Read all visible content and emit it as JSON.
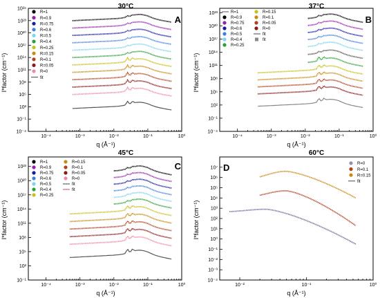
{
  "chart_data": [
    {
      "type": "scatter",
      "title": "30°C",
      "panel": "A",
      "xlabel": "q (Å⁻¹)",
      "ylabel": "I*factor (cm⁻¹)",
      "xscale": "log",
      "yscale": "log",
      "xlim": [
        3e-05,
        1
      ],
      "ylim": [
        0.0001,
        1e+26
      ],
      "x_tick_labels": [
        "10⁻⁴",
        "10⁻³",
        "10⁻²",
        "10⁻¹",
        "10⁰"
      ],
      "y_tick_labels": [
        "10⁻⁴",
        "10⁻¹",
        "10²",
        "10⁵",
        "10⁸",
        "10¹¹",
        "10¹⁴",
        "10¹⁷",
        "10²⁰",
        "10²³",
        "10²⁶"
      ],
      "legend_position": "top-left",
      "legend_columns": 1,
      "legend": [
        {
          "label": "R=1",
          "color": "#000000",
          "kind": "marker"
        },
        {
          "label": "R=0.9",
          "color": "#9b1fae",
          "kind": "marker"
        },
        {
          "label": "R=0.75",
          "color": "#1a1aa8",
          "kind": "marker"
        },
        {
          "label": "R=0.6",
          "color": "#3d7fe0",
          "kind": "marker"
        },
        {
          "label": "R=0.5",
          "color": "#7ed3f0",
          "kind": "marker"
        },
        {
          "label": "R=0.4",
          "color": "#2aa136",
          "kind": "marker"
        },
        {
          "label": "R=0.25",
          "color": "#c7c01c",
          "kind": "marker"
        },
        {
          "label": "R=0.15",
          "color": "#c98a14",
          "kind": "marker"
        },
        {
          "label": "R=0.1",
          "color": "#b3411e",
          "kind": "marker"
        },
        {
          "label": "R=0.05",
          "color": "#8c1a1a",
          "kind": "marker"
        },
        {
          "label": "R=0",
          "color": "#f08aa8",
          "kind": "marker"
        },
        {
          "label": "fit",
          "color": "#444444",
          "kind": "line"
        }
      ],
      "series": [
        {
          "name": "R=1",
          "color": "#000000",
          "qmin": 0.0006,
          "qmax": 0.5,
          "level": 23.6
        },
        {
          "name": "R=0.9",
          "color": "#9b1fae",
          "qmin": 0.0006,
          "qmax": 0.5,
          "level": 21.8
        },
        {
          "name": "R=0.75",
          "color": "#1a1aa8",
          "qmin": 0.0006,
          "qmax": 0.5,
          "level": 20.0
        },
        {
          "name": "R=0.6",
          "color": "#3d7fe0",
          "qmin": 0.0006,
          "qmax": 0.5,
          "level": 18.2
        },
        {
          "name": "R=0.5",
          "color": "#7ed3f0",
          "qmin": 0.0006,
          "qmax": 0.5,
          "level": 16.4
        },
        {
          "name": "R=0.4",
          "color": "#2aa136",
          "qmin": 0.0006,
          "qmax": 0.5,
          "level": 14.6
        },
        {
          "name": "R=0.25",
          "color": "#c7c01c",
          "qmin": 0.0006,
          "qmax": 0.5,
          "level": 12.8
        },
        {
          "name": "R=0.15",
          "color": "#c98a14",
          "qmin": 0.0006,
          "qmax": 0.5,
          "level": 11.0
        },
        {
          "name": "R=0.1",
          "color": "#b3411e",
          "qmin": 0.0006,
          "qmax": 0.5,
          "level": 9.2
        },
        {
          "name": "R=0.05",
          "color": "#8c1a1a",
          "qmin": 0.0006,
          "qmax": 0.5,
          "level": 7.4
        },
        {
          "name": "R=0",
          "color": "#f08aa8",
          "qmin": 0.0006,
          "qmax": 0.5,
          "level": 5.6
        },
        {
          "name": "fit",
          "color": "#555555",
          "qmin": 0.0006,
          "qmax": 0.5,
          "level": 2.2
        }
      ]
    },
    {
      "type": "scatter",
      "title": "37°C",
      "panel": "B",
      "xlabel": "q (Å⁻¹)",
      "ylabel": "I*factor (cm⁻¹)",
      "xscale": "log",
      "yscale": "log",
      "xlim": [
        3e-05,
        1
      ],
      "ylim": [
        0.0001,
        1e+24
      ],
      "x_tick_labels": [
        "10⁻⁴",
        "10⁻³",
        "10⁻²",
        "10⁻¹",
        "10⁰"
      ],
      "y_tick_labels": [
        "10⁻⁴",
        "10⁻¹",
        "10²",
        "10⁵",
        "10⁸",
        "10¹¹",
        "10¹⁴",
        "10¹⁷",
        "10²⁰",
        "10²³"
      ],
      "legend_position": "top-left",
      "legend_columns": 2,
      "legend": [
        {
          "label": "R=1",
          "color": "#555555",
          "kind": "line"
        },
        {
          "label": "R=0.9",
          "color": "#000000",
          "kind": "marker"
        },
        {
          "label": "R=0.75",
          "color": "#9b1fae",
          "kind": "marker"
        },
        {
          "label": "R=0.6",
          "color": "#1a1aa8",
          "kind": "marker"
        },
        {
          "label": "R=0.5",
          "color": "#3d7fe0",
          "kind": "marker"
        },
        {
          "label": "R=0.4",
          "color": "#7ed3f0",
          "kind": "marker"
        },
        {
          "label": "R=0.25",
          "color": "#2aa136",
          "kind": "marker"
        },
        {
          "label": "R=0.15",
          "color": "#c7c01c",
          "kind": "marker"
        },
        {
          "label": "R=0.1",
          "color": "#c98a14",
          "kind": "marker"
        },
        {
          "label": "R=0.05",
          "color": "#b3411e",
          "kind": "marker"
        },
        {
          "label": "R=0",
          "color": "#8c1a1a",
          "kind": "marker"
        },
        {
          "label": "fit",
          "color": "#444444",
          "kind": "line"
        },
        {
          "label": "fit",
          "color": "#888888",
          "kind": "square"
        }
      ],
      "series": [
        {
          "name": "R=0.9",
          "color": "#000000",
          "qmin": 0.012,
          "qmax": 0.5,
          "level": 21.8
        },
        {
          "name": "R=0.75",
          "color": "#9b1fae",
          "qmin": 0.012,
          "qmax": 0.5,
          "level": 20.2
        },
        {
          "name": "R=0.6",
          "color": "#1a1aa8",
          "qmin": 0.012,
          "qmax": 0.5,
          "level": 18.6
        },
        {
          "name": "R=0.5",
          "color": "#3d7fe0",
          "qmin": 0.012,
          "qmax": 0.5,
          "level": 17.0
        },
        {
          "name": "R=0.4",
          "color": "#7ed3f0",
          "qmin": 0.012,
          "qmax": 0.5,
          "level": 15.4
        },
        {
          "name": "R=1",
          "color": "#555555",
          "qmin": 0.012,
          "qmax": 0.5,
          "level": 13.6
        },
        {
          "name": "R=0.25",
          "color": "#2aa136",
          "qmin": 0.012,
          "qmax": 0.5,
          "level": 11.8
        },
        {
          "name": "R=0.15",
          "color": "#c7c01c",
          "qmin": 0.0004,
          "qmax": 0.5,
          "level": 10.0
        },
        {
          "name": "R=0.1",
          "color": "#c98a14",
          "qmin": 0.0004,
          "qmax": 0.5,
          "level": 8.4
        },
        {
          "name": "R=0.05",
          "color": "#b3411e",
          "qmin": 0.0004,
          "qmax": 0.5,
          "level": 6.8
        },
        {
          "name": "R=0",
          "color": "#8c1a1a",
          "qmin": 0.0004,
          "qmax": 0.5,
          "level": 5.2
        },
        {
          "name": "fit",
          "color": "#888888",
          "qmin": 0.0004,
          "qmax": 0.5,
          "level": 2.4
        }
      ]
    },
    {
      "type": "scatter",
      "title": "45°C",
      "panel": "C",
      "xlabel": "q (Å⁻¹)",
      "ylabel": "I*factor (cm⁻¹)",
      "xscale": "log",
      "yscale": "log",
      "xlim": [
        3e-05,
        1
      ],
      "ylim": [
        0.001,
        1e+23
      ],
      "x_tick_labels": [
        "10⁻⁴",
        "10⁻³",
        "10⁻²",
        "10⁻¹",
        "10⁰"
      ],
      "y_tick_labels": [
        "10⁻¹",
        "10²",
        "10⁵",
        "10⁸",
        "10¹¹",
        "10¹⁴",
        "10¹⁷",
        "10²⁰",
        "10²³"
      ],
      "legend_position": "top-left",
      "legend_columns": 2,
      "legend": [
        {
          "label": "R=1",
          "color": "#000000",
          "kind": "marker"
        },
        {
          "label": "R=0.9",
          "color": "#9b1fae",
          "kind": "marker"
        },
        {
          "label": "R=0.75",
          "color": "#1a1aa8",
          "kind": "marker"
        },
        {
          "label": "R=0.6",
          "color": "#3d7fe0",
          "kind": "marker"
        },
        {
          "label": "R=0.5",
          "color": "#7ed3f0",
          "kind": "marker"
        },
        {
          "label": "R=0.4",
          "color": "#2aa136",
          "kind": "marker"
        },
        {
          "label": "R=0.25",
          "color": "#c7c01c",
          "kind": "marker"
        },
        {
          "label": "R=0.15",
          "color": "#c98a14",
          "kind": "marker"
        },
        {
          "label": "R=0.1",
          "color": "#b3411e",
          "kind": "marker"
        },
        {
          "label": "R=0.05",
          "color": "#8c1a1a",
          "kind": "marker"
        },
        {
          "label": "R=0",
          "color": "#f08aa8",
          "kind": "marker"
        },
        {
          "label": "fit",
          "color": "#444444",
          "kind": "line"
        },
        {
          "label": "fit",
          "color": "#c0504d",
          "kind": "line"
        }
      ],
      "series": [
        {
          "name": "R=1",
          "color": "#000000",
          "qmin": 0.01,
          "qmax": 0.5,
          "level": 20.2
        },
        {
          "name": "R=0.9",
          "color": "#9b1fae",
          "qmin": 0.01,
          "qmax": 0.5,
          "level": 18.8
        },
        {
          "name": "R=0.75",
          "color": "#1a1aa8",
          "qmin": 0.01,
          "qmax": 0.5,
          "level": 17.4
        },
        {
          "name": "R=0.6",
          "color": "#3d7fe0",
          "qmin": 0.01,
          "qmax": 0.5,
          "level": 16.0
        },
        {
          "name": "R=0.5",
          "color": "#7ed3f0",
          "qmin": 0.01,
          "qmax": 0.5,
          "level": 14.6
        },
        {
          "name": "R=0.4",
          "color": "#2aa136",
          "qmin": 0.01,
          "qmax": 0.5,
          "level": 13.2
        },
        {
          "name": "R=0.25",
          "color": "#c7c01c",
          "qmin": 0.0005,
          "qmax": 0.5,
          "level": 11.6
        },
        {
          "name": "R=0.15",
          "color": "#c98a14",
          "qmin": 0.0005,
          "qmax": 0.5,
          "level": 10.0
        },
        {
          "name": "R=0.1",
          "color": "#b3411e",
          "qmin": 0.0005,
          "qmax": 0.5,
          "level": 8.4
        },
        {
          "name": "R=0.05",
          "color": "#8c1a1a",
          "qmin": 0.0005,
          "qmax": 0.5,
          "level": 6.8
        },
        {
          "name": "R=0",
          "color": "#f08aa8",
          "qmin": 0.0005,
          "qmax": 0.5,
          "level": 5.2
        },
        {
          "name": "fit",
          "color": "#555555",
          "qmin": 0.0005,
          "qmax": 0.5,
          "level": 2.4
        }
      ]
    },
    {
      "type": "scatter",
      "title": "60°C",
      "panel": "D",
      "xlabel": "q (Å⁻¹)",
      "ylabel": "I*factor (cm⁻¹)",
      "xscale": "log",
      "yscale": "log",
      "xlim": [
        0.005,
        1
      ],
      "ylim": [
        0.0001,
        100000000.0
      ],
      "x_tick_labels": [
        "10⁻²",
        "10⁻¹",
        "10⁰"
      ],
      "y_tick_labels": [
        "10⁻⁴",
        "10⁻³",
        "10⁻²",
        "10⁻¹",
        "10⁰",
        "10¹",
        "10²",
        "10³",
        "10⁴",
        "10⁵",
        "10⁶",
        "10⁷"
      ],
      "legend_position": "top-right",
      "legend_columns": 1,
      "legend": [
        {
          "label": "R=0",
          "color": "#9b8ab8",
          "kind": "marker"
        },
        {
          "label": "R=0.1",
          "color": "#b3411e",
          "kind": "marker"
        },
        {
          "label": "R=0.15",
          "color": "#c98a14",
          "kind": "marker"
        },
        {
          "label": "fit",
          "color": "#444444",
          "kind": "line"
        }
      ],
      "series": [
        {
          "name": "R=0.15",
          "color": "#c98a14",
          "qmin": 0.02,
          "qmax": 0.55,
          "peak_q": 0.05,
          "peak_level": 6.6,
          "start_level": 5.6,
          "end_level": 4.0
        },
        {
          "name": "R=0.1",
          "color": "#b3411e",
          "qmin": 0.02,
          "qmax": 0.55,
          "peak_q": 0.05,
          "peak_level": 4.7,
          "start_level": 3.9,
          "end_level": 1.3
        },
        {
          "name": "R=0",
          "color": "#7a6a9a",
          "qmin": 0.007,
          "qmax": 0.55,
          "peak_q": 0.025,
          "peak_level": 2.9,
          "start_level": 2.6,
          "end_level": -0.5
        }
      ]
    }
  ]
}
